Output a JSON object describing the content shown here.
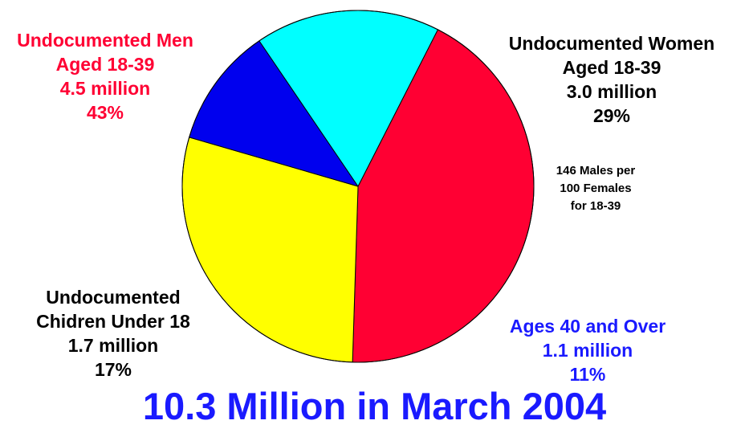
{
  "chart_data": {
    "type": "pie",
    "title": "10.3 Million in March 2004",
    "total": "10.3 Million",
    "slices": [
      {
        "name": "Undocumented Men Aged 18-39",
        "value": 4.5,
        "percent": 43,
        "color": "#ff0033"
      },
      {
        "name": "Undocumented Women Aged 18-39",
        "value": 3.0,
        "percent": 29,
        "color": "#ffff00"
      },
      {
        "name": "Ages 40 and Over",
        "value": 1.1,
        "percent": 11,
        "color": "#0000ee"
      },
      {
        "name": "Undocumented Chidren Under 18",
        "value": 1.7,
        "percent": 17,
        "color": "#00ffff"
      }
    ],
    "annotation": [
      "146 Males per",
      "100 Females",
      "for 18-39"
    ],
    "labels": {
      "men": {
        "lines": [
          "Undocumented Men",
          "Aged 18-39",
          "4.5 million",
          "43%"
        ],
        "color": "#ff0033"
      },
      "women": {
        "lines": [
          "Undocumented Women",
          "Aged 18-39",
          "3.0 million",
          "29%"
        ],
        "color": "#000000"
      },
      "older": {
        "lines": [
          "Ages 40 and Over",
          "1.1 million",
          "11%"
        ],
        "color": "#1a1aff"
      },
      "children": {
        "lines": [
          "Undocumented",
          "Chidren Under 18",
          "1.7 million",
          "17%"
        ],
        "color": "#000000"
      }
    },
    "title_color": "#1a1aff"
  }
}
